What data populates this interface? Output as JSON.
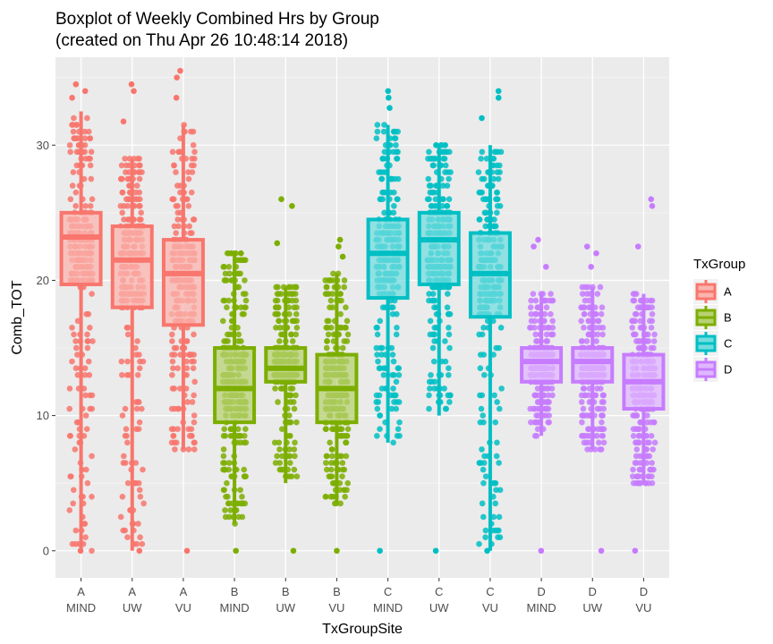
{
  "chart_data": {
    "type": "boxplot",
    "title": "Boxplot of Weekly Combined Hrs by Group",
    "subtitle": "(created on Thu Apr 26 10:48:14 2018)",
    "xlabel": "TxGroupSite",
    "ylabel": "Comb_TOT",
    "ylim": [
      -2,
      36.5
    ],
    "yticks": [
      0,
      10,
      20,
      30
    ],
    "grid": true,
    "legend": {
      "title": "TxGroup",
      "position": "right",
      "entries": [
        {
          "label": "A",
          "color": "#F8766D"
        },
        {
          "label": "B",
          "color": "#7CAE00"
        },
        {
          "label": "C",
          "color": "#00BFC4"
        },
        {
          "label": "D",
          "color": "#C77CFF"
        }
      ]
    },
    "categories": [
      {
        "group": "A",
        "site": "MIND",
        "min": 0,
        "q1": 19.7,
        "median": 23.2,
        "q3": 25.0,
        "max": 32.5,
        "points_max": 34.5
      },
      {
        "group": "A",
        "site": "UW",
        "min": 0,
        "q1": 18.0,
        "median": 21.5,
        "q3": 24.0,
        "max": 29.0,
        "points_max": 34.5
      },
      {
        "group": "A",
        "site": "VU",
        "min": 7.5,
        "q1": 16.7,
        "median": 20.5,
        "q3": 23.0,
        "max": 31.5,
        "points_max": 35.5
      },
      {
        "group": "B",
        "site": "MIND",
        "min": 2.0,
        "q1": 9.5,
        "median": 12.0,
        "q3": 15.0,
        "max": 22.0,
        "points_max": 22.0
      },
      {
        "group": "B",
        "site": "UW",
        "min": 5.0,
        "q1": 12.5,
        "median": 13.5,
        "q3": 15.0,
        "max": 19.5,
        "points_max": 26.0
      },
      {
        "group": "B",
        "site": "VU",
        "min": 3.5,
        "q1": 9.5,
        "median": 12.0,
        "q3": 14.5,
        "max": 20.5,
        "points_max": 23.0
      },
      {
        "group": "C",
        "site": "MIND",
        "min": 8.0,
        "q1": 18.7,
        "median": 22.0,
        "q3": 24.5,
        "max": 31.5,
        "points_max": 34.0
      },
      {
        "group": "C",
        "site": "UW",
        "min": 10.0,
        "q1": 19.7,
        "median": 23.0,
        "q3": 25.0,
        "max": 30.0,
        "points_max": 30.0
      },
      {
        "group": "C",
        "site": "VU",
        "min": 0,
        "q1": 17.3,
        "median": 20.5,
        "q3": 23.5,
        "max": 30.0,
        "points_max": 34.0
      },
      {
        "group": "D",
        "site": "MIND",
        "min": 8.5,
        "q1": 12.5,
        "median": 14.0,
        "q3": 15.0,
        "max": 19.0,
        "points_max": 23.0
      },
      {
        "group": "D",
        "site": "UW",
        "min": 7.5,
        "q1": 12.5,
        "median": 14.0,
        "q3": 15.0,
        "max": 19.5,
        "points_max": 22.5
      },
      {
        "group": "D",
        "site": "VU",
        "min": 5.0,
        "q1": 10.5,
        "median": 12.5,
        "q3": 14.5,
        "max": 19.0,
        "points_max": 26.0
      }
    ]
  }
}
